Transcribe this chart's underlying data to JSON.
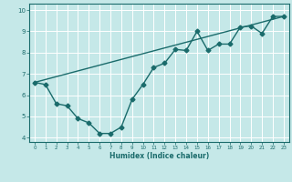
{
  "line1_x": [
    0,
    1,
    2,
    3,
    4,
    5,
    6,
    7,
    8,
    9,
    10,
    11,
    12,
    13,
    14,
    15,
    16,
    17,
    18,
    19,
    20,
    21,
    22,
    23
  ],
  "line1_y": [
    6.6,
    6.5,
    5.6,
    5.5,
    4.9,
    4.7,
    4.2,
    4.2,
    4.5,
    5.8,
    6.5,
    7.3,
    7.5,
    8.15,
    8.1,
    9.0,
    8.1,
    8.4,
    8.4,
    9.2,
    9.25,
    8.9,
    9.7,
    9.7
  ],
  "line2_x": [
    0,
    23
  ],
  "line2_y": [
    6.6,
    9.7
  ],
  "line_color": "#1a6b6b",
  "bg_color": "#c5e8e8",
  "grid_color": "#ffffff",
  "xlabel": "Humidex (Indice chaleur)",
  "xlim": [
    -0.5,
    23.5
  ],
  "ylim": [
    3.8,
    10.3
  ],
  "yticks": [
    4,
    5,
    6,
    7,
    8,
    9,
    10
  ],
  "xticks": [
    0,
    1,
    2,
    3,
    4,
    5,
    6,
    7,
    8,
    9,
    10,
    11,
    12,
    13,
    14,
    15,
    16,
    17,
    18,
    19,
    20,
    21,
    22,
    23
  ],
  "marker": "D",
  "markersize": 2.5,
  "linewidth": 1.0
}
